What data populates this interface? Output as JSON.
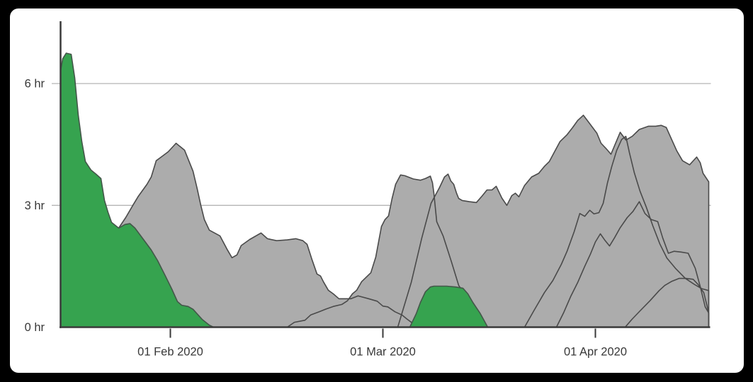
{
  "page": {
    "background": "#000000",
    "card_background": "#ffffff"
  },
  "chart_data": {
    "type": "area",
    "title": "",
    "xlabel": "",
    "ylabel": "",
    "x_axis": {
      "unit": "date",
      "tick_labels": [
        "01 Feb 2020",
        "01 Mar 2020",
        "01 Apr 2020"
      ],
      "tick_days": [
        15.5,
        45.5,
        75.5
      ],
      "range_days": [
        0,
        91.5
      ],
      "start_date_approx": "16 Jan 2020",
      "end_date_approx": "16 Apr 2020"
    },
    "y_axis": {
      "unit": "hours",
      "tick_labels": [
        "0 hr",
        "3 hr",
        "6 hr"
      ],
      "tick_hours": [
        0,
        3,
        6
      ],
      "range_hours": [
        0,
        7.5
      ],
      "gridline_hours": [
        3,
        6
      ]
    },
    "legend": {
      "visible": false
    },
    "colors": {
      "gray_fill": "#acacac",
      "gray_stroke": "#4a4a4a",
      "green_fill": "#36a34f",
      "green_stroke": "#44574a",
      "axis": "#3a3a3a",
      "gridline": "#b5b5b5",
      "text": "#383838"
    },
    "series": [
      {
        "name": "gray-area-1",
        "color": "gray",
        "points": [
          [
            6.5,
            0
          ],
          [
            7.4,
            0.9
          ],
          [
            8.2,
            2.44
          ],
          [
            9.2,
            2.7
          ],
          [
            10.2,
            3.0
          ],
          [
            11.0,
            3.23
          ],
          [
            12.2,
            3.52
          ],
          [
            12.8,
            3.7
          ],
          [
            13.5,
            4.1
          ],
          [
            14.2,
            4.19
          ],
          [
            15.2,
            4.32
          ],
          [
            16.3,
            4.53
          ],
          [
            17.5,
            4.36
          ],
          [
            18.7,
            3.84
          ],
          [
            19.3,
            3.4
          ],
          [
            19.8,
            3.0
          ],
          [
            20.3,
            2.65
          ],
          [
            21.0,
            2.39
          ],
          [
            22.5,
            2.25
          ],
          [
            23.5,
            1.92
          ],
          [
            24.2,
            1.71
          ],
          [
            24.9,
            1.78
          ],
          [
            25.5,
            2.01
          ],
          [
            26.7,
            2.16
          ],
          [
            28.3,
            2.32
          ],
          [
            29.2,
            2.18
          ],
          [
            30.5,
            2.13
          ],
          [
            32.0,
            2.15
          ],
          [
            33.2,
            2.18
          ],
          [
            34.2,
            2.13
          ],
          [
            34.8,
            2.04
          ],
          [
            35.5,
            1.66
          ],
          [
            36.2,
            1.31
          ],
          [
            36.7,
            1.26
          ],
          [
            37.1,
            1.12
          ],
          [
            37.8,
            0.91
          ],
          [
            38.5,
            0.82
          ],
          [
            39.3,
            0.7
          ],
          [
            41.0,
            0.7
          ],
          [
            42.0,
            0.77
          ],
          [
            43.5,
            0.7
          ],
          [
            44.7,
            0.64
          ],
          [
            45.5,
            0.52
          ],
          [
            46.2,
            0.5
          ],
          [
            47.2,
            0.38
          ],
          [
            48.2,
            0.3
          ],
          [
            48.9,
            0.2
          ],
          [
            49.6,
            0.11
          ],
          [
            51.0,
            0
          ]
        ]
      },
      {
        "name": "gray-area-3",
        "color": "gray",
        "points": [
          [
            47.6,
            0
          ],
          [
            49.5,
            1.1
          ],
          [
            51.0,
            2.2
          ],
          [
            52.3,
            3.05
          ],
          [
            53.5,
            3.44
          ],
          [
            54.2,
            3.7
          ],
          [
            54.7,
            3.77
          ],
          [
            55.1,
            3.6
          ],
          [
            55.5,
            3.52
          ],
          [
            55.9,
            3.3
          ],
          [
            56.2,
            3.17
          ],
          [
            56.7,
            3.12
          ],
          [
            57.7,
            3.09
          ],
          [
            58.7,
            3.07
          ],
          [
            59.5,
            3.23
          ],
          [
            60.2,
            3.38
          ],
          [
            60.9,
            3.38
          ],
          [
            61.5,
            3.47
          ],
          [
            62.3,
            3.18
          ],
          [
            63.0,
            3.0
          ],
          [
            63.7,
            3.24
          ],
          [
            64.2,
            3.3
          ],
          [
            64.7,
            3.21
          ],
          [
            65.5,
            3.49
          ],
          [
            66.5,
            3.7
          ],
          [
            67.5,
            3.79
          ],
          [
            68.3,
            3.96
          ],
          [
            69.0,
            4.08
          ],
          [
            69.7,
            4.31
          ],
          [
            70.5,
            4.57
          ],
          [
            71.5,
            4.74
          ],
          [
            72.3,
            4.92
          ],
          [
            73.0,
            5.09
          ],
          [
            73.8,
            5.22
          ],
          [
            74.5,
            5.06
          ],
          [
            75.7,
            4.78
          ],
          [
            76.3,
            4.53
          ],
          [
            77.0,
            4.4
          ],
          [
            77.7,
            4.26
          ],
          [
            78.4,
            4.55
          ],
          [
            79.0,
            4.8
          ],
          [
            79.8,
            4.61
          ],
          [
            80.7,
            4.7
          ],
          [
            81.7,
            4.87
          ],
          [
            83.0,
            4.95
          ],
          [
            84.0,
            4.95
          ],
          [
            84.8,
            4.97
          ],
          [
            85.5,
            4.92
          ],
          [
            86.3,
            4.61
          ],
          [
            87.0,
            4.34
          ],
          [
            87.8,
            4.1
          ],
          [
            88.8,
            4.0
          ],
          [
            89.8,
            4.19
          ],
          [
            90.3,
            4.05
          ],
          [
            90.7,
            3.79
          ],
          [
            91.5,
            3.58
          ]
        ]
      },
      {
        "name": "gray-area-4",
        "color": "gray",
        "points": [
          [
            65.5,
            0
          ],
          [
            66.8,
            0.4
          ],
          [
            68.3,
            0.85
          ],
          [
            69.5,
            1.15
          ],
          [
            70.7,
            1.55
          ],
          [
            71.5,
            1.87
          ],
          [
            72.5,
            2.35
          ],
          [
            73.3,
            2.8
          ],
          [
            74.0,
            2.73
          ],
          [
            74.7,
            2.88
          ],
          [
            75.3,
            2.79
          ],
          [
            76.0,
            2.82
          ],
          [
            76.6,
            3.05
          ],
          [
            77.2,
            3.55
          ],
          [
            77.8,
            3.95
          ],
          [
            78.5,
            4.35
          ],
          [
            79.2,
            4.62
          ],
          [
            79.8,
            4.7
          ],
          [
            80.3,
            4.3
          ],
          [
            81.0,
            3.8
          ],
          [
            81.8,
            3.35
          ],
          [
            82.7,
            2.95
          ],
          [
            83.6,
            2.5
          ],
          [
            84.6,
            2.05
          ],
          [
            85.6,
            1.7
          ],
          [
            86.8,
            1.45
          ],
          [
            88.2,
            1.2
          ],
          [
            89.5,
            1.05
          ],
          [
            90.5,
            0.95
          ],
          [
            91.5,
            0.9
          ]
        ]
      },
      {
        "name": "gray-area-5",
        "color": "gray",
        "points": [
          [
            70.0,
            0
          ],
          [
            71.0,
            0.35
          ],
          [
            72.0,
            0.75
          ],
          [
            73.0,
            1.1
          ],
          [
            74.0,
            1.5
          ],
          [
            74.8,
            1.8
          ],
          [
            75.5,
            2.1
          ],
          [
            76.2,
            2.3
          ],
          [
            76.8,
            2.15
          ],
          [
            77.5,
            2.0
          ],
          [
            78.2,
            2.2
          ],
          [
            79.0,
            2.45
          ],
          [
            80.0,
            2.7
          ],
          [
            80.8,
            2.85
          ],
          [
            81.7,
            3.09
          ],
          [
            82.5,
            2.8
          ],
          [
            83.4,
            2.65
          ],
          [
            84.3,
            2.6
          ],
          [
            85.0,
            2.2
          ],
          [
            85.8,
            1.82
          ],
          [
            86.6,
            1.87
          ],
          [
            87.6,
            1.85
          ],
          [
            88.6,
            1.82
          ],
          [
            89.6,
            1.45
          ],
          [
            90.3,
            1.0
          ],
          [
            91.0,
            0.5
          ],
          [
            91.5,
            0.35
          ]
        ]
      },
      {
        "name": "gray-area-6",
        "color": "gray",
        "points": [
          [
            79.7,
            0
          ],
          [
            80.7,
            0.2
          ],
          [
            81.8,
            0.4
          ],
          [
            83.2,
            0.65
          ],
          [
            84.5,
            0.9
          ],
          [
            85.3,
            1.03
          ],
          [
            86.3,
            1.13
          ],
          [
            87.3,
            1.2
          ],
          [
            88.3,
            1.2
          ],
          [
            89.3,
            1.18
          ],
          [
            90.0,
            1.05
          ],
          [
            90.8,
            0.85
          ],
          [
            91.3,
            0.5
          ],
          [
            91.5,
            0.33
          ]
        ]
      },
      {
        "name": "gray-area-2",
        "color": "gray",
        "points": [
          [
            32.0,
            0
          ],
          [
            33.0,
            0.12
          ],
          [
            34.5,
            0.17
          ],
          [
            35.3,
            0.3
          ],
          [
            36.5,
            0.38
          ],
          [
            37.5,
            0.45
          ],
          [
            38.5,
            0.51
          ],
          [
            39.7,
            0.56
          ],
          [
            40.5,
            0.65
          ],
          [
            41.2,
            0.82
          ],
          [
            41.8,
            0.91
          ],
          [
            42.5,
            1.12
          ],
          [
            43.8,
            1.34
          ],
          [
            44.5,
            1.73
          ],
          [
            45.3,
            2.48
          ],
          [
            45.8,
            2.65
          ],
          [
            46.3,
            2.74
          ],
          [
            46.8,
            3.17
          ],
          [
            47.3,
            3.52
          ],
          [
            48.0,
            3.75
          ],
          [
            48.6,
            3.73
          ],
          [
            49.8,
            3.65
          ],
          [
            50.8,
            3.62
          ],
          [
            51.5,
            3.66
          ],
          [
            52.2,
            3.72
          ],
          [
            52.5,
            3.56
          ],
          [
            52.7,
            3.3
          ],
          [
            52.9,
            2.95
          ],
          [
            53.1,
            2.6
          ],
          [
            54.0,
            2.25
          ],
          [
            55.2,
            1.6
          ],
          [
            56.2,
            1.03
          ],
          [
            57.2,
            0.78
          ],
          [
            58.2,
            0.42
          ],
          [
            59.0,
            0.06
          ],
          [
            59.4,
            0
          ]
        ]
      },
      {
        "name": "green-area",
        "color": "green",
        "points": [
          [
            0,
            6.31
          ],
          [
            0.3,
            6.61
          ],
          [
            0.8,
            6.75
          ],
          [
            1.5,
            6.72
          ],
          [
            2.0,
            6.14
          ],
          [
            2.5,
            5.22
          ],
          [
            3.0,
            4.57
          ],
          [
            3.5,
            4.08
          ],
          [
            4.3,
            3.87
          ],
          [
            5.0,
            3.77
          ],
          [
            5.7,
            3.66
          ],
          [
            6.2,
            3.12
          ],
          [
            6.7,
            2.83
          ],
          [
            7.2,
            2.58
          ],
          [
            8.2,
            2.44
          ],
          [
            9.1,
            2.53
          ],
          [
            9.8,
            2.55
          ],
          [
            10.5,
            2.44
          ],
          [
            11.7,
            2.16
          ],
          [
            12.8,
            1.9
          ],
          [
            13.7,
            1.64
          ],
          [
            14.8,
            1.26
          ],
          [
            15.7,
            0.94
          ],
          [
            16.5,
            0.63
          ],
          [
            17.1,
            0.54
          ],
          [
            18.0,
            0.51
          ],
          [
            18.7,
            0.44
          ],
          [
            20.0,
            0.19
          ],
          [
            21.0,
            0.05
          ],
          [
            21.6,
            0
          ],
          [
            49.3,
            0
          ],
          [
            50.2,
            0.33
          ],
          [
            50.8,
            0.61
          ],
          [
            51.5,
            0.87
          ],
          [
            52.2,
            0.99
          ],
          [
            52.7,
            1.01
          ],
          [
            54.5,
            1.01
          ],
          [
            55.8,
            0.99
          ],
          [
            56.8,
            0.96
          ],
          [
            57.5,
            0.82
          ],
          [
            58.2,
            0.61
          ],
          [
            59.2,
            0.35
          ],
          [
            59.8,
            0.16
          ],
          [
            60.3,
            0
          ],
          [
            91.5,
            0
          ]
        ]
      }
    ]
  }
}
